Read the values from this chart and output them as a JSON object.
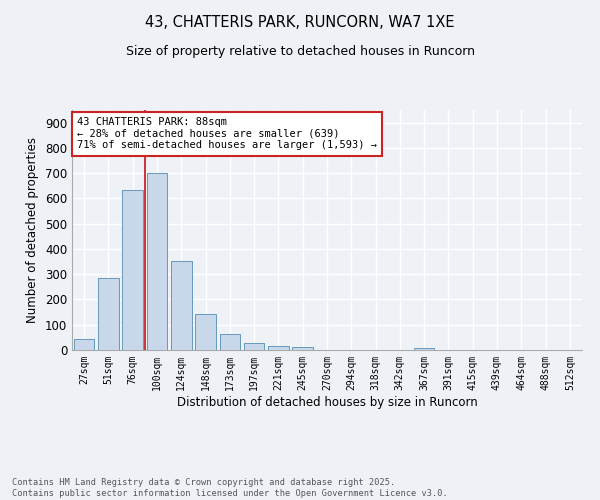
{
  "title1": "43, CHATTERIS PARK, RUNCORN, WA7 1XE",
  "title2": "Size of property relative to detached houses in Runcorn",
  "xlabel": "Distribution of detached houses by size in Runcorn",
  "ylabel": "Number of detached properties",
  "bin_labels": [
    "27sqm",
    "51sqm",
    "76sqm",
    "100sqm",
    "124sqm",
    "148sqm",
    "173sqm",
    "197sqm",
    "221sqm",
    "245sqm",
    "270sqm",
    "294sqm",
    "318sqm",
    "342sqm",
    "367sqm",
    "391sqm",
    "415sqm",
    "439sqm",
    "464sqm",
    "488sqm",
    "512sqm"
  ],
  "bar_values": [
    42,
    285,
    635,
    700,
    352,
    143,
    65,
    28,
    17,
    12,
    0,
    0,
    0,
    0,
    8,
    0,
    0,
    0,
    0,
    0,
    0
  ],
  "bar_color": "#c8d8ea",
  "bar_edge_color": "#6699bb",
  "background_color": "#eef2f7",
  "grid_color": "#ffffff",
  "vline_color": "#cc2222",
  "annotation_text": "43 CHATTERIS PARK: 88sqm\n← 28% of detached houses are smaller (639)\n71% of semi-detached houses are larger (1,593) →",
  "annotation_box_color": "#ffffff",
  "annotation_box_edge": "#cc2222",
  "footer_text": "Contains HM Land Registry data © Crown copyright and database right 2025.\nContains public sector information licensed under the Open Government Licence v3.0.",
  "ylim": [
    0,
    950
  ],
  "yticks": [
    0,
    100,
    200,
    300,
    400,
    500,
    600,
    700,
    800,
    900
  ]
}
